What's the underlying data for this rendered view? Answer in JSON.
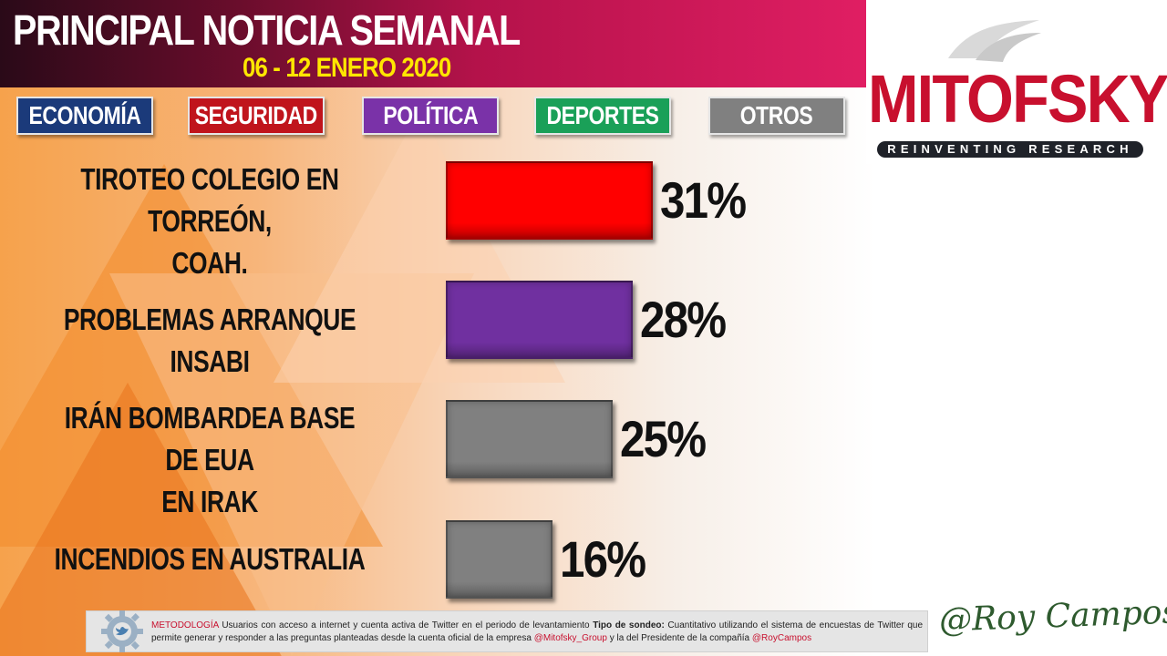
{
  "header": {
    "title": "PRINCIPAL NOTICIA SEMANAL",
    "date_range": "06 - 12 ENERO 2020"
  },
  "logo": {
    "name": "MITOFSKY",
    "tagline": "REINVENTING RESEARCH"
  },
  "categories": [
    {
      "label": "ECONOMÍA",
      "color": "#1b3a7a"
    },
    {
      "label": "SEGURIDAD",
      "color": "#c0141c"
    },
    {
      "label": "POLÍTICA",
      "color": "#7a32a8"
    },
    {
      "label": "DEPORTES",
      "color": "#1aa058"
    },
    {
      "label": "OTROS",
      "color": "#808080"
    }
  ],
  "chart_data": {
    "type": "bar",
    "orientation": "horizontal",
    "categories": [
      "TIROTEO COLEGIO EN TORREÓN, COAH.",
      "PROBLEMAS ARRANQUE INSABI",
      "IRÁN BOMBARDEA BASE DE EUA EN IRAK",
      "INCENDIOS EN AUSTRALIA"
    ],
    "values": [
      31,
      28,
      25,
      16
    ],
    "value_labels": [
      "31%",
      "28%",
      "25%",
      "16%"
    ],
    "bar_categories": [
      "SEGURIDAD",
      "POLÍTICA",
      "OTROS",
      "OTROS"
    ],
    "bar_colors": [
      "#ff0000",
      "#7030a0",
      "#808080",
      "#808080"
    ],
    "title": "PRINCIPAL NOTICIA SEMANAL",
    "subtitle": "06 - 12 ENERO 2020",
    "grid": false
  },
  "footer": {
    "method_label": "METODOLOGÍA",
    "method_text": "Usuarios con acceso a internet y cuenta activa de Twitter en el periodo de levantamiento",
    "type_label": "Tipo de sondeo:",
    "type_text_1": "Cuantitativo utilizando el sistema de encuestas de Twitter que permite generar y  responder a las preguntas planteadas desde la cuenta oficial de la empresa",
    "handle_company": "@Mitofsky_Group",
    "type_text_2": "y la del Presidente de la compañía",
    "handle_president": "@RoyCampos"
  },
  "signature": "@Roy Campos"
}
